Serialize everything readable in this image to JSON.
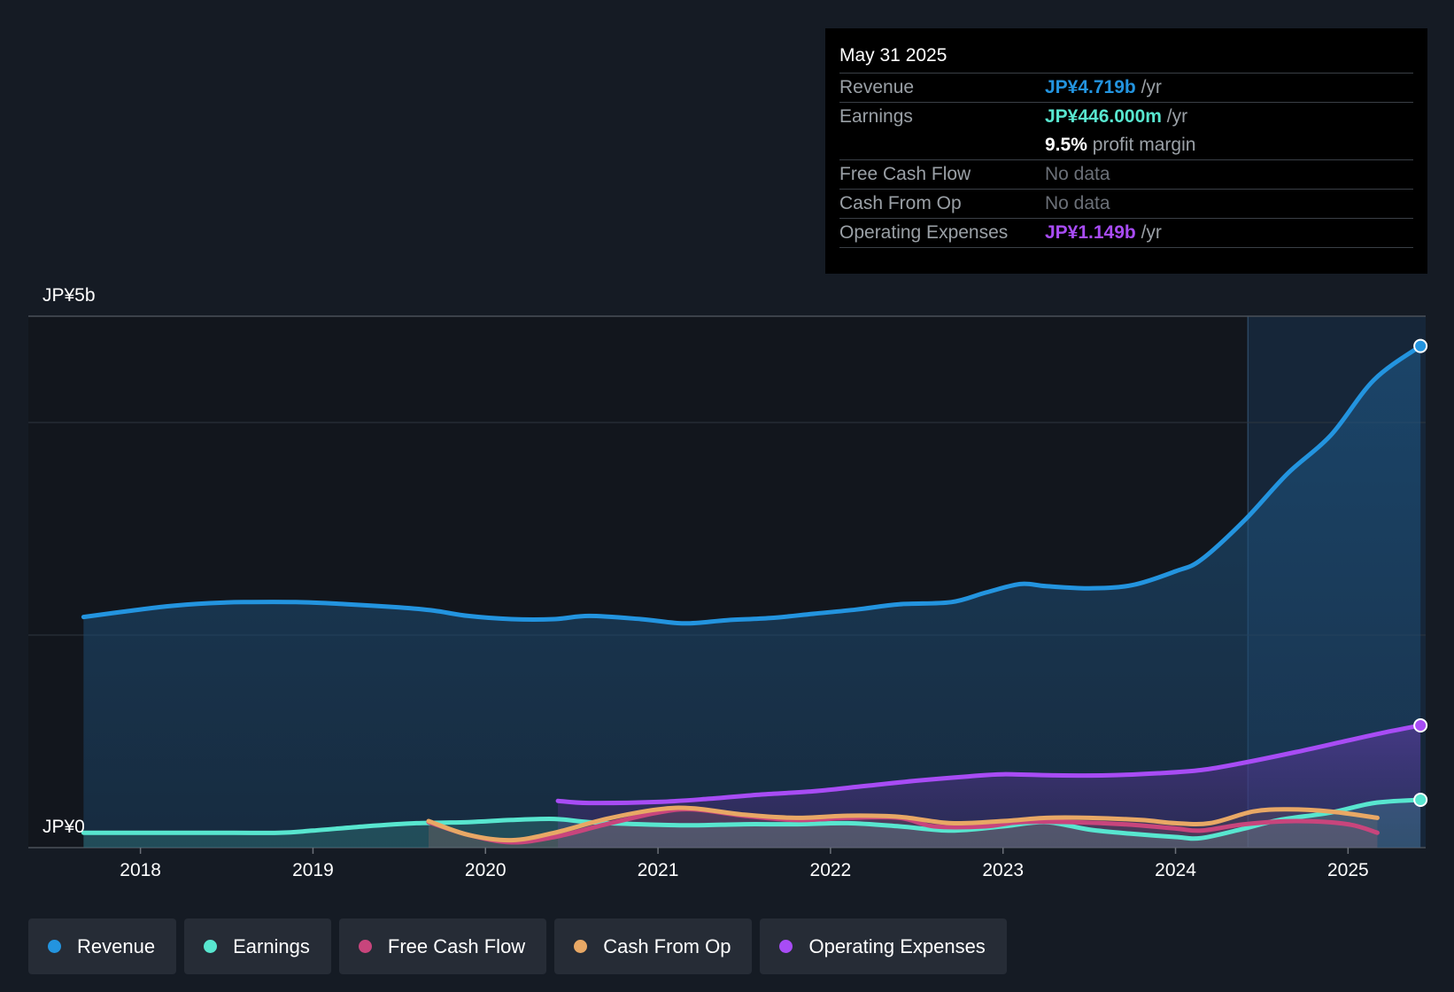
{
  "tooltip": {
    "date": "May 31 2025",
    "rows": [
      {
        "label": "Revenue",
        "value": "JP¥4.719b",
        "unit": " /yr",
        "color": "#2394df"
      },
      {
        "label": "Earnings",
        "value": "JP¥446.000m",
        "unit": " /yr",
        "color": "#58e6cf"
      },
      {
        "label": "",
        "value": "9.5%",
        "unit": " profit margin",
        "color": "#ffffff"
      },
      {
        "label": "Free Cash Flow",
        "nodata": "No data"
      },
      {
        "label": "Cash From Op",
        "nodata": "No data"
      },
      {
        "label": "Operating Expenses",
        "value": "JP¥1.149b",
        "unit": " /yr",
        "color": "#a84cf5"
      }
    ]
  },
  "legend": [
    {
      "label": "Revenue",
      "color": "#2394df"
    },
    {
      "label": "Earnings",
      "color": "#58e6cf"
    },
    {
      "label": "Free Cash Flow",
      "color": "#c8457c"
    },
    {
      "label": "Cash From Op",
      "color": "#e8a865"
    },
    {
      "label": "Operating Expenses",
      "color": "#a84cf5"
    }
  ],
  "chart_data": {
    "type": "area",
    "title": "",
    "xlabel": "",
    "ylabel": "",
    "y_top_label": "JP¥5b",
    "y_bottom_label": "JP¥0",
    "ylim": [
      0,
      5
    ],
    "y_unit": "JP¥ billions",
    "xlim": [
      2017.35,
      2025.45
    ],
    "x_ticks": [
      "2018",
      "2019",
      "2020",
      "2021",
      "2022",
      "2023",
      "2024",
      "2025"
    ],
    "grid": true,
    "highlight_start": 2024.42,
    "series": [
      {
        "name": "Revenue",
        "color": "#2394df",
        "x": [
          2017.67,
          2017.9,
          2018.15,
          2018.4,
          2018.6,
          2018.9,
          2019.2,
          2019.5,
          2019.7,
          2019.9,
          2020.15,
          2020.4,
          2020.6,
          2020.9,
          2021.15,
          2021.4,
          2021.65,
          2021.9,
          2022.15,
          2022.4,
          2022.7,
          2022.9,
          2023.1,
          2023.25,
          2023.5,
          2023.75,
          2024.0,
          2024.15,
          2024.4,
          2024.65,
          2024.9,
          2025.15,
          2025.42
        ],
        "y": [
          2.17,
          2.22,
          2.27,
          2.3,
          2.31,
          2.31,
          2.29,
          2.26,
          2.23,
          2.18,
          2.15,
          2.15,
          2.18,
          2.15,
          2.11,
          2.14,
          2.16,
          2.2,
          2.24,
          2.29,
          2.31,
          2.4,
          2.48,
          2.46,
          2.44,
          2.47,
          2.6,
          2.71,
          3.08,
          3.52,
          3.88,
          4.4,
          4.72
        ]
      },
      {
        "name": "Earnings",
        "color": "#58e6cf",
        "x": [
          2017.67,
          2018.0,
          2018.4,
          2018.8,
          2019.0,
          2019.3,
          2019.6,
          2019.9,
          2020.15,
          2020.4,
          2020.6,
          2020.9,
          2021.2,
          2021.5,
          2021.8,
          2022.1,
          2022.4,
          2022.7,
          2023.0,
          2023.25,
          2023.5,
          2023.75,
          2024.0,
          2024.15,
          2024.4,
          2024.6,
          2024.9,
          2025.15,
          2025.42
        ],
        "y": [
          0.14,
          0.14,
          0.14,
          0.14,
          0.16,
          0.2,
          0.23,
          0.24,
          0.26,
          0.27,
          0.24,
          0.22,
          0.21,
          0.22,
          0.22,
          0.23,
          0.2,
          0.16,
          0.2,
          0.24,
          0.17,
          0.13,
          0.1,
          0.09,
          0.18,
          0.26,
          0.33,
          0.42,
          0.45
        ]
      },
      {
        "name": "Free Cash Flow",
        "color": "#c8457c",
        "x": [
          2019.67,
          2019.9,
          2020.15,
          2020.4,
          2020.7,
          2021.0,
          2021.2,
          2021.5,
          2021.8,
          2022.1,
          2022.4,
          2022.6,
          2022.9,
          2023.1,
          2023.4,
          2023.7,
          2024.0,
          2024.15,
          2024.4,
          2024.7,
          2025.0,
          2025.17
        ],
        "y": [
          0.24,
          0.12,
          0.05,
          0.1,
          0.22,
          0.33,
          0.36,
          0.3,
          0.26,
          0.28,
          0.28,
          0.2,
          0.2,
          0.24,
          0.24,
          0.22,
          0.18,
          0.16,
          0.22,
          0.25,
          0.22,
          0.14
        ]
      },
      {
        "name": "Cash From Op",
        "color": "#e8a865",
        "x": [
          2019.67,
          2019.9,
          2020.15,
          2020.4,
          2020.7,
          2021.0,
          2021.2,
          2021.5,
          2021.8,
          2022.1,
          2022.4,
          2022.7,
          2023.0,
          2023.25,
          2023.5,
          2023.8,
          2024.0,
          2024.2,
          2024.45,
          2024.65,
          2024.9,
          2025.17
        ],
        "y": [
          0.25,
          0.12,
          0.07,
          0.14,
          0.27,
          0.36,
          0.37,
          0.31,
          0.28,
          0.3,
          0.29,
          0.23,
          0.25,
          0.28,
          0.28,
          0.26,
          0.23,
          0.23,
          0.34,
          0.36,
          0.34,
          0.28
        ]
      },
      {
        "name": "Operating Expenses",
        "color": "#a84cf5",
        "x": [
          2020.42,
          2020.6,
          2021.0,
          2021.3,
          2021.6,
          2021.9,
          2022.2,
          2022.5,
          2022.8,
          2023.0,
          2023.3,
          2023.6,
          2023.9,
          2024.15,
          2024.4,
          2024.7,
          2024.95,
          2025.2,
          2025.42
        ],
        "y": [
          0.44,
          0.42,
          0.43,
          0.46,
          0.5,
          0.53,
          0.58,
          0.63,
          0.67,
          0.69,
          0.68,
          0.68,
          0.7,
          0.73,
          0.8,
          0.9,
          0.99,
          1.08,
          1.15
        ]
      }
    ]
  }
}
